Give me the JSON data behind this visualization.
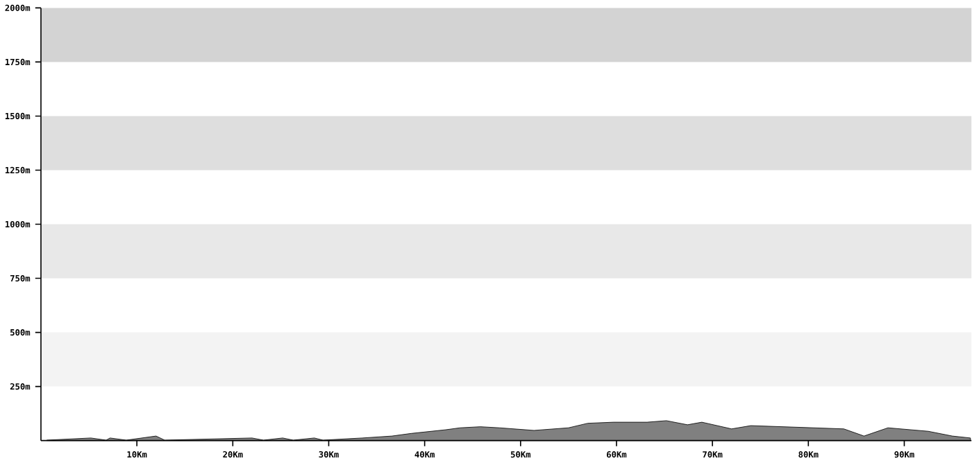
{
  "chart_data": {
    "type": "area",
    "color": "#808080",
    "x": [
      0.6,
      5.2,
      6.8,
      7.2,
      8.9,
      12,
      12.9,
      22,
      23.2,
      25.2,
      26.3,
      28.5,
      29.4,
      33.5,
      36.6,
      38.6,
      42.2,
      43.7,
      45.8,
      47.8,
      51.4,
      55,
      57,
      59.7,
      63.2,
      65.2,
      67.4,
      68.9,
      72,
      74,
      78.6,
      83.7,
      85.8,
      88.3,
      92.5,
      95,
      96.9
    ],
    "values": [
      2,
      12,
      2,
      12,
      2,
      21,
      2,
      12,
      2,
      12,
      2,
      12,
      2,
      12,
      21,
      33,
      50,
      59,
      64,
      59,
      47,
      59,
      80,
      85,
      85,
      92,
      73,
      85,
      54,
      69,
      62,
      54,
      21,
      59,
      43,
      21,
      12
    ],
    "xlim": [
      0,
      97
    ],
    "ylim": [
      0,
      2000
    ],
    "xticks": [
      {
        "value": 10,
        "label": "10Km"
      },
      {
        "value": 20,
        "label": "20Km"
      },
      {
        "value": 30,
        "label": "30Km"
      },
      {
        "value": 40,
        "label": "40Km"
      },
      {
        "value": 50,
        "label": "50Km"
      },
      {
        "value": 60,
        "label": "60Km"
      },
      {
        "value": 70,
        "label": "70Km"
      },
      {
        "value": 80,
        "label": "80Km"
      },
      {
        "value": 90,
        "label": "90Km"
      }
    ],
    "yticks": [
      {
        "value": 250,
        "label": "250m"
      },
      {
        "value": 500,
        "label": "500m"
      },
      {
        "value": 750,
        "label": "750m"
      },
      {
        "value": 1000,
        "label": "1000m"
      },
      {
        "value": 1250,
        "label": "1250m"
      },
      {
        "value": 1500,
        "label": "1500m"
      },
      {
        "value": 1750,
        "label": "1750m"
      },
      {
        "value": 2000,
        "label": "2000m"
      }
    ],
    "bands": [
      {
        "axis": "y",
        "from": 250,
        "to": 500,
        "color": "#f3f3f3"
      },
      {
        "axis": "y",
        "from": 750,
        "to": 1000,
        "color": "#e8e8e8"
      },
      {
        "axis": "y",
        "from": 1250,
        "to": 1500,
        "color": "#dedede"
      },
      {
        "axis": "y",
        "from": 1750,
        "to": 2000,
        "color": "#d3d3d3"
      }
    ]
  }
}
